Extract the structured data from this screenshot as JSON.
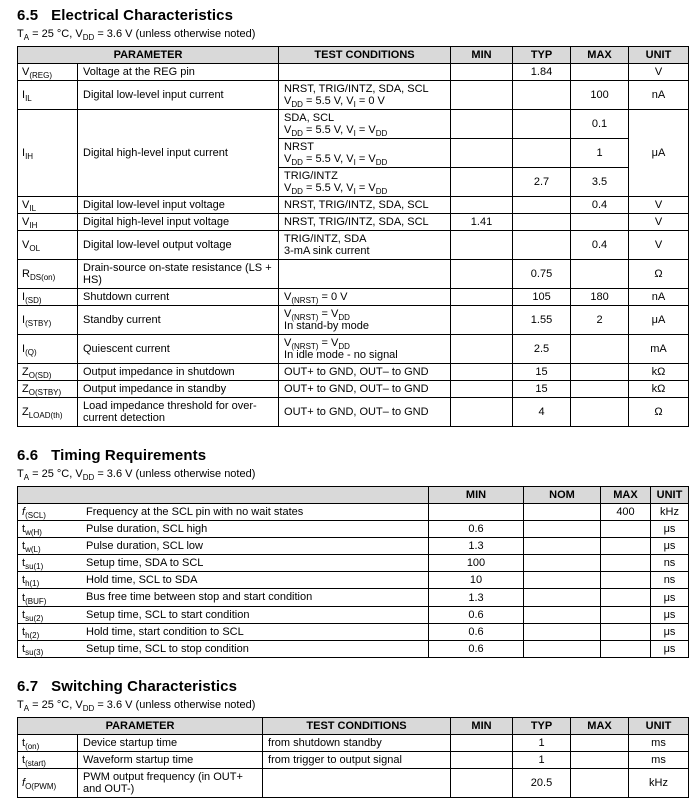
{
  "colors": {
    "page_bg": "#ffffff",
    "text": "#000000",
    "table_header_bg": "#d9d9d9",
    "border": "#000000"
  },
  "s65": {
    "number": "6.5",
    "title": "Electrical Characteristics",
    "condition": "T~A~ = 25 °C, V~DD~ = 3.6 V (unless otherwise noted)",
    "headers": {
      "parameter": "PARAMETER",
      "test_conditions": "TEST CONDITIONS",
      "min": "MIN",
      "typ": "TYP",
      "max": "MAX",
      "unit": "UNIT"
    },
    "rows": [
      {
        "sym": "V~(REG)~",
        "desc": "Voltage at the REG pin",
        "cond": "",
        "min": "",
        "typ": "1.84",
        "max": "",
        "unit": "V"
      },
      {
        "sym": "I~IL~",
        "desc": "Digital low-level input current",
        "cond": "NRST, TRIG/INTZ, SDA, SCL\nV~DD~ = 5.5 V, V~I~ = 0 V",
        "min": "",
        "typ": "",
        "max": "100",
        "unit": "nA"
      },
      {
        "sym": "I~IH~",
        "desc": "Digital high-level input current",
        "cond": "SDA, SCL\nV~DD~ = 5.5 V, V~I~ = V~DD~",
        "min": "",
        "typ": "",
        "max": "0.1",
        "unit": "μA"
      },
      {
        "cond": "NRST\nV~DD~ = 5.5 V, V~I~ = V~DD~",
        "min": "",
        "typ": "",
        "max": "1"
      },
      {
        "cond": "TRIG/INTZ\nV~DD~ = 5.5 V, V~I~ = V~DD~",
        "min": "",
        "typ": "2.7",
        "max": "3.5"
      },
      {
        "sym": "V~IL~",
        "desc": "Digital low-level input voltage",
        "cond": "NRST, TRIG/INTZ, SDA, SCL",
        "min": "",
        "typ": "",
        "max": "0.4",
        "unit": "V"
      },
      {
        "sym": "V~IH~",
        "desc": "Digital high-level input voltage",
        "cond": "NRST, TRIG/INTZ, SDA, SCL",
        "min": "1.41",
        "typ": "",
        "max": "",
        "unit": "V"
      },
      {
        "sym": "V~OL~",
        "desc": "Digital low-level output voltage",
        "cond": "TRIG/INTZ, SDA\n3-mA sink current",
        "min": "",
        "typ": "",
        "max": "0.4",
        "unit": "V"
      },
      {
        "sym": "R~DS(on)~",
        "desc": "Drain-source on-state resistance (LS + HS)",
        "cond": "",
        "min": "",
        "typ": "0.75",
        "max": "",
        "unit": "Ω"
      },
      {
        "sym": "I~(SD)~",
        "desc": "Shutdown current",
        "cond": "V~(NRST)~ = 0 V",
        "min": "",
        "typ": "105",
        "max": "180",
        "unit": "nA"
      },
      {
        "sym": "I~(STBY)~",
        "desc": "Standby current",
        "cond": "V~(NRST)~ = V~DD~\nIn stand-by mode",
        "min": "",
        "typ": "1.55",
        "max": "2",
        "unit": "μA"
      },
      {
        "sym": "I~(Q)~",
        "desc": "Quiescent current",
        "cond": "V~(NRST)~ = V~DD~\nIn idle mode - no signal",
        "min": "",
        "typ": "2.5",
        "max": "",
        "unit": "mA"
      },
      {
        "sym": "Z~O(SD)~",
        "desc": "Output impedance in shutdown",
        "cond": "OUT+ to GND, OUT– to GND",
        "min": "",
        "typ": "15",
        "max": "",
        "unit": "kΩ"
      },
      {
        "sym": "Z~O(STBY)~",
        "desc": "Output impedance in standby",
        "cond": "OUT+ to GND, OUT– to GND",
        "min": "",
        "typ": "15",
        "max": "",
        "unit": "kΩ"
      },
      {
        "sym": "Z~LOAD(th)~",
        "desc": "Load impedance threshold for over-current detection",
        "cond": "OUT+ to GND, OUT– to GND",
        "min": "",
        "typ": "4",
        "max": "",
        "unit": "Ω"
      }
    ]
  },
  "s66": {
    "number": "6.6",
    "title": "Timing Requirements",
    "condition": "T~A~ = 25 °C, V~DD~ = 3.6 V (unless otherwise noted)",
    "headers": {
      "parameter": "",
      "min": "MIN",
      "nom": "NOM",
      "max": "MAX",
      "unit": "UNIT"
    },
    "rows": [
      {
        "sym": "*f*~(SCL)~",
        "desc": "Frequency at the SCL pin with no wait states",
        "min": "",
        "nom": "",
        "max": "400",
        "unit": "kHz"
      },
      {
        "sym": "t~w(H)~",
        "desc": "Pulse duration, SCL high",
        "min": "0.6",
        "nom": "",
        "max": "",
        "unit": "μs"
      },
      {
        "sym": "t~w(L)~",
        "desc": "Pulse duration, SCL low",
        "min": "1.3",
        "nom": "",
        "max": "",
        "unit": "μs"
      },
      {
        "sym": "t~su(1)~",
        "desc": "Setup time, SDA to SCL",
        "min": "100",
        "nom": "",
        "max": "",
        "unit": "ns"
      },
      {
        "sym": "t~h(1)~",
        "desc": "Hold time, SCL to SDA",
        "min": "10",
        "nom": "",
        "max": "",
        "unit": "ns"
      },
      {
        "sym": "t~(BUF)~",
        "desc": "Bus free time between stop and start condition",
        "min": "1.3",
        "nom": "",
        "max": "",
        "unit": "μs"
      },
      {
        "sym": "t~su(2)~",
        "desc": "Setup time, SCL to start condition",
        "min": "0.6",
        "nom": "",
        "max": "",
        "unit": "μs"
      },
      {
        "sym": "t~h(2)~",
        "desc": "Hold time, start condition to SCL",
        "min": "0.6",
        "nom": "",
        "max": "",
        "unit": "μs"
      },
      {
        "sym": "t~su(3)~",
        "desc": "Setup time, SCL to stop condition",
        "min": "0.6",
        "nom": "",
        "max": "",
        "unit": "μs"
      }
    ]
  },
  "s67": {
    "number": "6.7",
    "title": "Switching Characteristics",
    "condition": "T~A~ = 25 °C, V~DD~ = 3.6 V (unless otherwise noted)",
    "headers": {
      "parameter": "PARAMETER",
      "test_conditions": "TEST CONDITIONS",
      "min": "MIN",
      "typ": "TYP",
      "max": "MAX",
      "unit": "UNIT"
    },
    "rows": [
      {
        "sym": "t~(on)~",
        "desc": "Device startup time",
        "cond": "from shutdown standby",
        "min": "",
        "typ": "1",
        "max": "",
        "unit": "ms"
      },
      {
        "sym": "t~(start)~",
        "desc": "Waveform startup time",
        "cond": "from trigger to output signal",
        "min": "",
        "typ": "1",
        "max": "",
        "unit": "ms"
      },
      {
        "sym": "*f*~O(PWM)~",
        "desc": "PWM output frequency (in OUT+ and OUT-)",
        "cond": "",
        "min": "",
        "typ": "20.5",
        "max": "",
        "unit": "kHz"
      }
    ]
  }
}
